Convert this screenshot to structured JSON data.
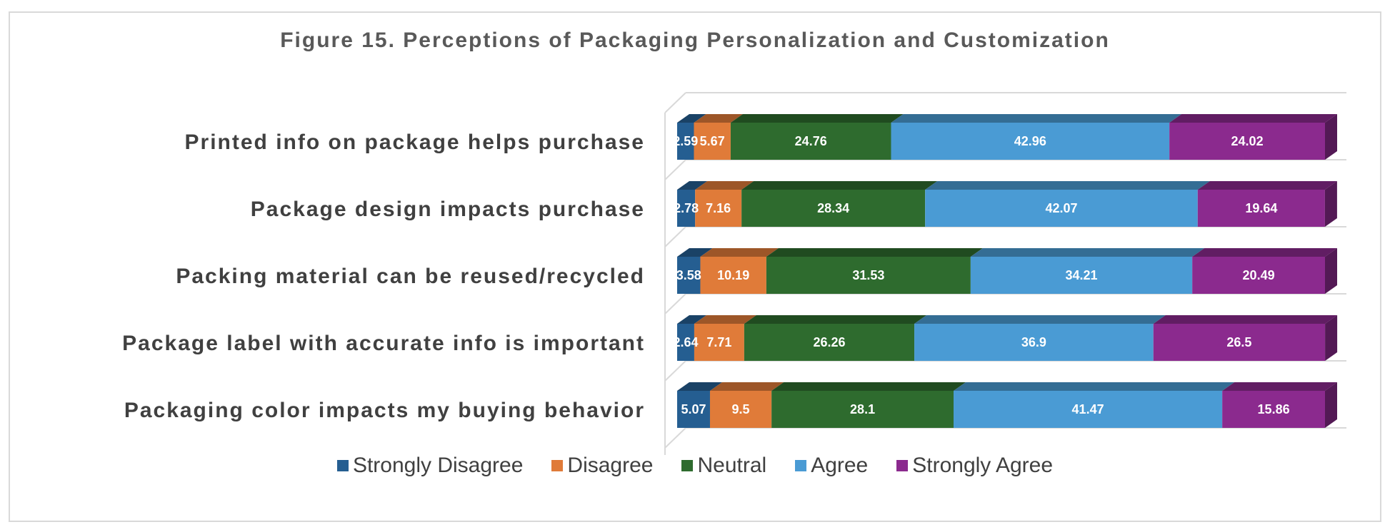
{
  "chart_data": {
    "type": "bar",
    "orientation": "horizontal",
    "stacked": true,
    "style": "3d",
    "title": "Figure 15. Perceptions of Packaging Personalization and Customization",
    "categories": [
      "Printed info on package helps purchase",
      "Package design impacts purchase",
      "Packing material can be reused/recycled",
      "Package label with accurate info is important",
      "Packaging color impacts my buying behavior"
    ],
    "series": [
      {
        "name": "Strongly Disagree",
        "color": "#255E91",
        "values": [
          2.59,
          2.78,
          3.58,
          2.64,
          5.07
        ]
      },
      {
        "name": "Disagree",
        "color": "#E07B39",
        "values": [
          5.67,
          7.16,
          10.19,
          7.71,
          9.5
        ]
      },
      {
        "name": "Neutral",
        "color": "#2E6B2E",
        "values": [
          24.76,
          28.34,
          31.53,
          26.26,
          28.1
        ]
      },
      {
        "name": "Agree",
        "color": "#4A9BD4",
        "values": [
          42.96,
          42.07,
          34.21,
          36.9,
          41.47
        ]
      },
      {
        "name": "Strongly Agree",
        "color": "#8B2A8E",
        "values": [
          24.02,
          19.64,
          20.49,
          26.5,
          15.86
        ]
      }
    ],
    "value_labels": [
      [
        "2.59",
        "5.67",
        "24.76",
        "42.96",
        "24.02"
      ],
      [
        "2.78",
        "7.16",
        "28.34",
        "42.07",
        "19.64"
      ],
      [
        "3.58",
        "10.19",
        "31.53",
        "34.21",
        "20.49"
      ],
      [
        "2.64",
        "7.71",
        "26.26",
        "36.9",
        "26.5"
      ],
      [
        "5.07",
        "9.5",
        "28.1",
        "41.47",
        "15.86"
      ]
    ],
    "xlim": [
      0,
      100
    ],
    "legend_position": "bottom",
    "grid": true
  }
}
